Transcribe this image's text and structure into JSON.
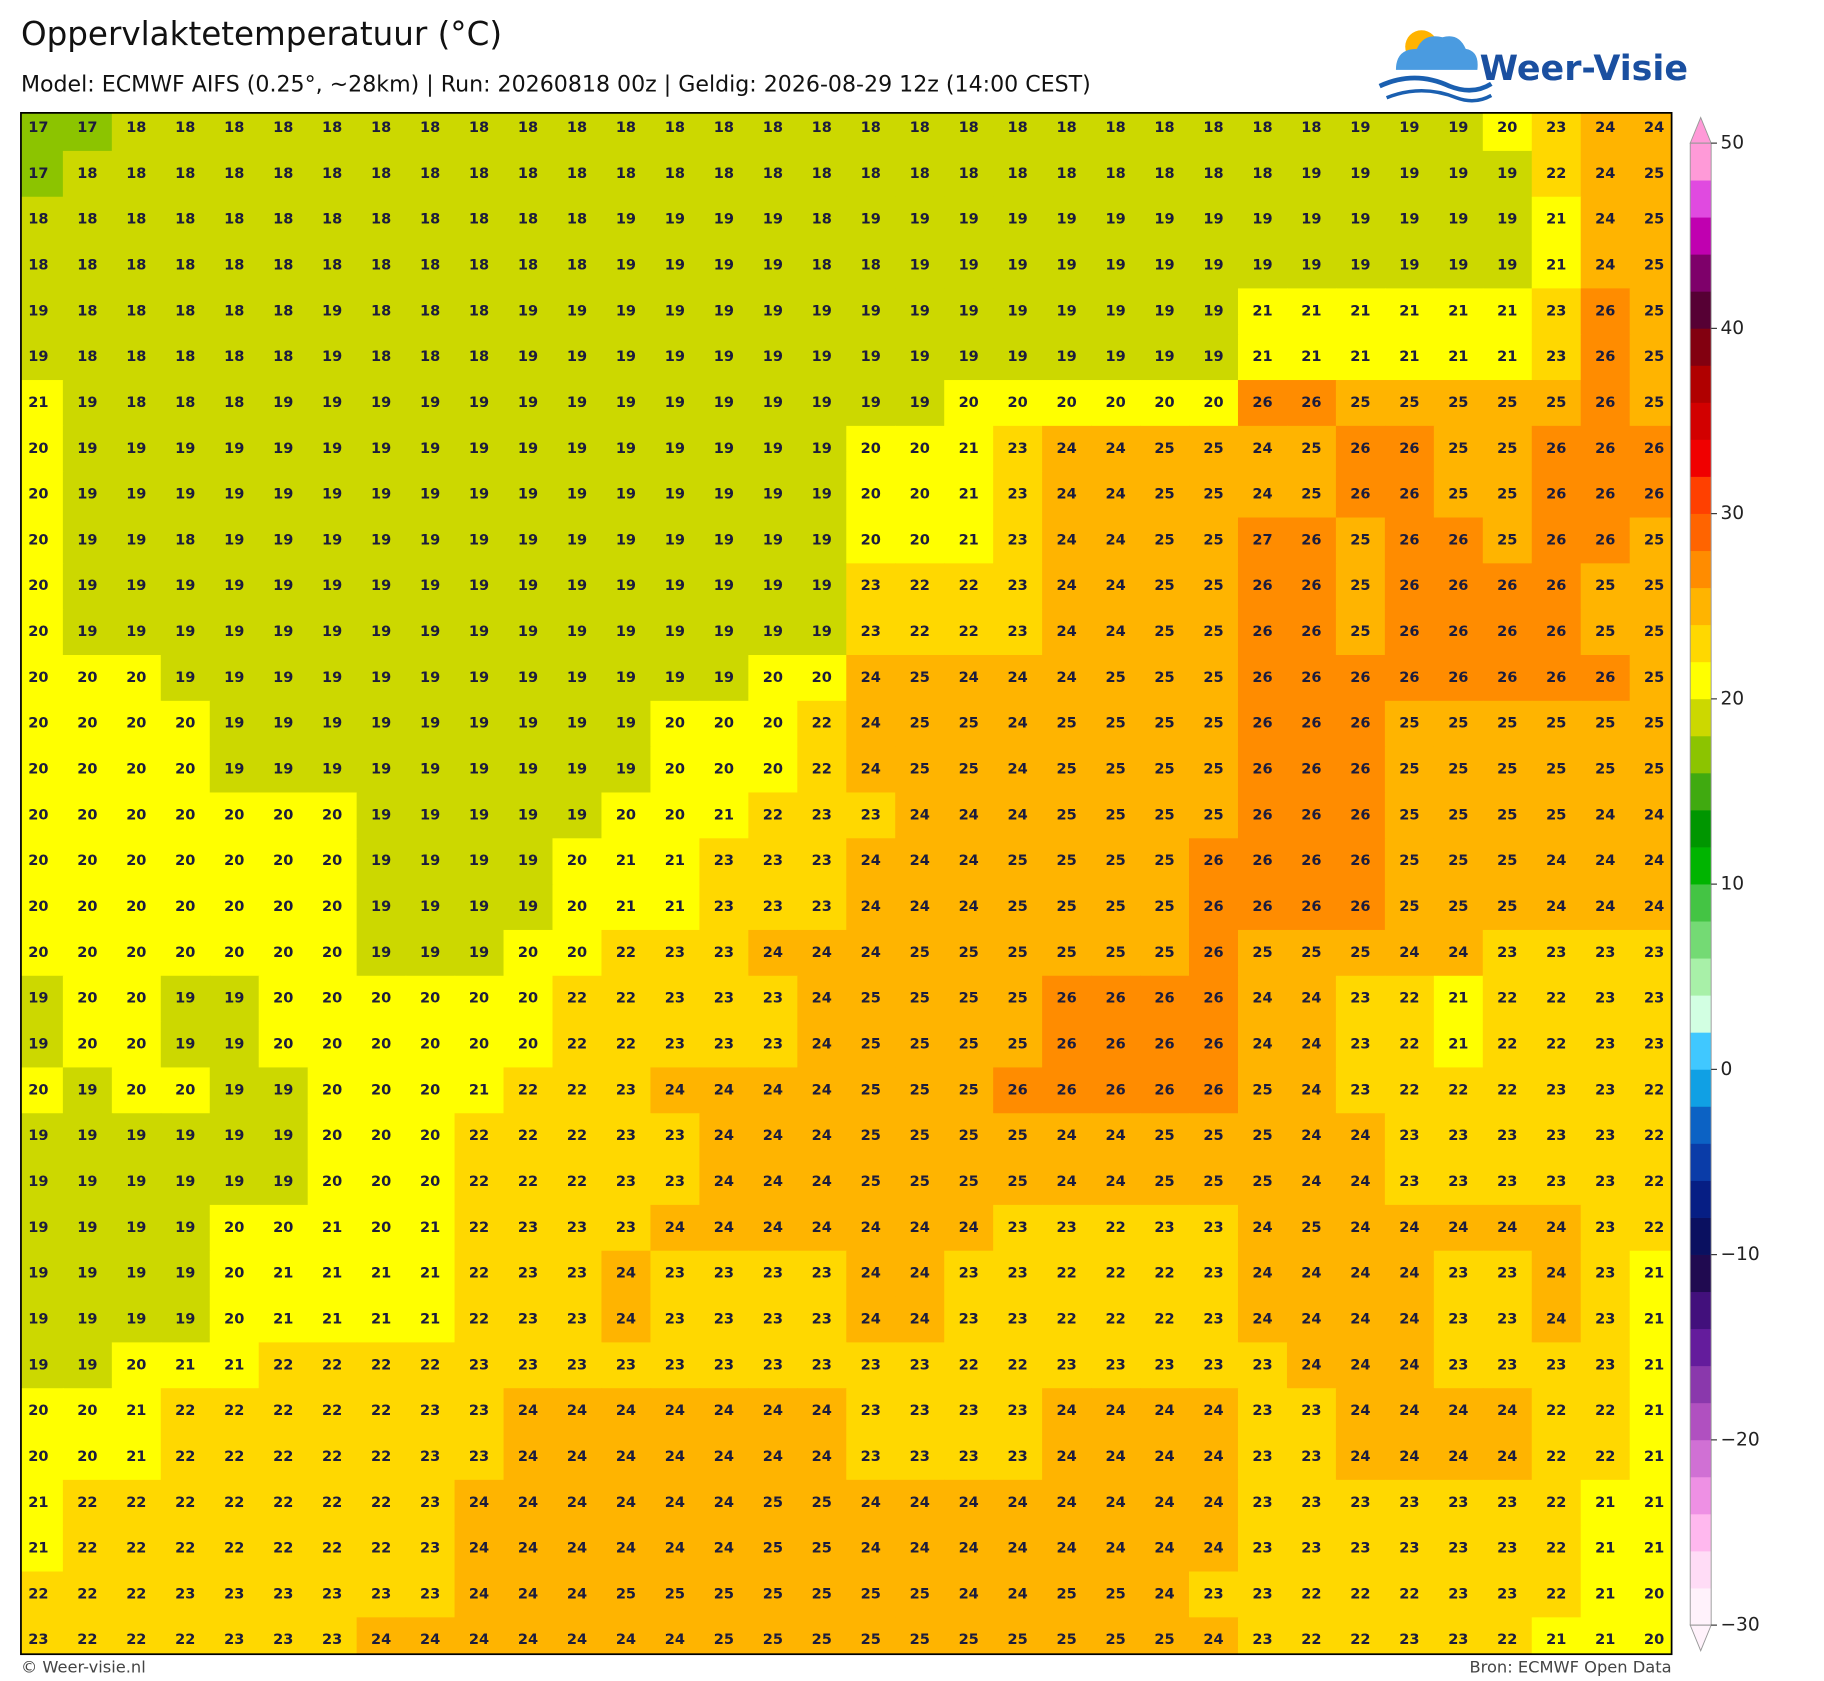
{
  "header": {
    "title": "Oppervlaktetemperatuur (°C)",
    "subtitle": "Model: ECMWF AIFS (0.25°, ~28km)  |  Run: 20260818 00z  |  Geldig: 2026-08-29 12z (14:00 CEST)"
  },
  "logo": {
    "text": "Weer-Visie"
  },
  "grid": {
    "rows": [
      [
        17,
        17,
        18,
        18,
        18,
        18,
        18,
        18,
        18,
        18,
        18,
        18,
        18,
        18,
        18,
        18,
        18,
        18,
        18,
        18,
        18,
        18,
        18,
        18,
        18,
        18,
        18,
        19,
        19,
        19,
        20,
        23,
        24,
        24
      ],
      [
        17,
        18,
        18,
        18,
        18,
        18,
        18,
        18,
        18,
        18,
        18,
        18,
        18,
        18,
        18,
        18,
        18,
        18,
        18,
        18,
        18,
        18,
        18,
        18,
        18,
        18,
        19,
        19,
        19,
        19,
        19,
        22,
        24,
        25
      ],
      [
        18,
        18,
        18,
        18,
        18,
        18,
        18,
        18,
        18,
        18,
        18,
        18,
        19,
        19,
        19,
        19,
        18,
        19,
        19,
        19,
        19,
        19,
        19,
        19,
        19,
        19,
        19,
        19,
        19,
        19,
        19,
        21,
        24,
        25
      ],
      [
        18,
        18,
        18,
        18,
        18,
        18,
        18,
        18,
        18,
        18,
        18,
        18,
        19,
        19,
        19,
        19,
        18,
        18,
        19,
        19,
        19,
        19,
        19,
        19,
        19,
        19,
        19,
        19,
        19,
        19,
        19,
        21,
        24,
        25
      ],
      [
        19,
        18,
        18,
        18,
        18,
        18,
        19,
        18,
        18,
        18,
        19,
        19,
        19,
        19,
        19,
        19,
        19,
        19,
        19,
        19,
        19,
        19,
        19,
        19,
        19,
        21,
        21,
        21,
        21,
        21,
        21,
        23,
        26,
        25
      ],
      [
        19,
        18,
        18,
        18,
        18,
        18,
        19,
        18,
        18,
        18,
        19,
        19,
        19,
        19,
        19,
        19,
        19,
        19,
        19,
        19,
        19,
        19,
        19,
        19,
        19,
        21,
        21,
        21,
        21,
        21,
        21,
        23,
        26,
        25
      ],
      [
        21,
        19,
        18,
        18,
        18,
        19,
        19,
        19,
        19,
        19,
        19,
        19,
        19,
        19,
        19,
        19,
        19,
        19,
        19,
        20,
        20,
        20,
        20,
        20,
        20,
        26,
        26,
        25,
        25,
        25,
        25,
        25,
        26,
        25
      ],
      [
        20,
        19,
        19,
        19,
        19,
        19,
        19,
        19,
        19,
        19,
        19,
        19,
        19,
        19,
        19,
        19,
        19,
        20,
        20,
        21,
        23,
        24,
        24,
        25,
        25,
        24,
        25,
        26,
        26,
        25,
        25,
        26,
        26,
        26
      ],
      [
        20,
        19,
        19,
        19,
        19,
        19,
        19,
        19,
        19,
        19,
        19,
        19,
        19,
        19,
        19,
        19,
        19,
        20,
        20,
        21,
        23,
        24,
        24,
        25,
        25,
        24,
        25,
        26,
        26,
        25,
        25,
        26,
        26,
        26
      ],
      [
        20,
        19,
        19,
        18,
        19,
        19,
        19,
        19,
        19,
        19,
        19,
        19,
        19,
        19,
        19,
        19,
        19,
        20,
        20,
        21,
        23,
        24,
        24,
        25,
        25,
        27,
        26,
        25,
        26,
        26,
        25,
        26,
        26,
        25
      ],
      [
        20,
        19,
        19,
        19,
        19,
        19,
        19,
        19,
        19,
        19,
        19,
        19,
        19,
        19,
        19,
        19,
        19,
        23,
        22,
        22,
        23,
        24,
        24,
        25,
        25,
        26,
        26,
        25,
        26,
        26,
        26,
        26,
        25,
        25
      ],
      [
        20,
        19,
        19,
        19,
        19,
        19,
        19,
        19,
        19,
        19,
        19,
        19,
        19,
        19,
        19,
        19,
        19,
        23,
        22,
        22,
        23,
        24,
        24,
        25,
        25,
        26,
        26,
        25,
        26,
        26,
        26,
        26,
        25,
        25
      ],
      [
        20,
        20,
        20,
        19,
        19,
        19,
        19,
        19,
        19,
        19,
        19,
        19,
        19,
        19,
        19,
        20,
        20,
        24,
        25,
        24,
        24,
        24,
        25,
        25,
        25,
        26,
        26,
        26,
        26,
        26,
        26,
        26,
        26,
        25
      ],
      [
        20,
        20,
        20,
        20,
        19,
        19,
        19,
        19,
        19,
        19,
        19,
        19,
        19,
        20,
        20,
        20,
        22,
        24,
        25,
        25,
        24,
        25,
        25,
        25,
        25,
        26,
        26,
        26,
        25,
        25,
        25,
        25,
        25,
        25
      ],
      [
        20,
        20,
        20,
        20,
        19,
        19,
        19,
        19,
        19,
        19,
        19,
        19,
        19,
        20,
        20,
        20,
        22,
        24,
        25,
        25,
        24,
        25,
        25,
        25,
        25,
        26,
        26,
        26,
        25,
        25,
        25,
        25,
        25,
        25
      ],
      [
        20,
        20,
        20,
        20,
        20,
        20,
        20,
        19,
        19,
        19,
        19,
        19,
        20,
        20,
        21,
        22,
        23,
        23,
        24,
        24,
        24,
        25,
        25,
        25,
        25,
        26,
        26,
        26,
        25,
        25,
        25,
        25,
        24,
        24
      ],
      [
        20,
        20,
        20,
        20,
        20,
        20,
        20,
        19,
        19,
        19,
        19,
        20,
        21,
        21,
        23,
        23,
        23,
        24,
        24,
        24,
        25,
        25,
        25,
        25,
        26,
        26,
        26,
        26,
        25,
        25,
        25,
        24,
        24,
        24
      ],
      [
        20,
        20,
        20,
        20,
        20,
        20,
        20,
        19,
        19,
        19,
        19,
        20,
        21,
        21,
        23,
        23,
        23,
        24,
        24,
        24,
        25,
        25,
        25,
        25,
        26,
        26,
        26,
        26,
        25,
        25,
        25,
        24,
        24,
        24
      ],
      [
        20,
        20,
        20,
        20,
        20,
        20,
        20,
        19,
        19,
        19,
        20,
        20,
        22,
        23,
        23,
        24,
        24,
        24,
        25,
        25,
        25,
        25,
        25,
        25,
        26,
        25,
        25,
        25,
        24,
        24,
        23,
        23,
        23,
        23
      ],
      [
        19,
        20,
        20,
        19,
        19,
        20,
        20,
        20,
        20,
        20,
        20,
        22,
        22,
        23,
        23,
        23,
        24,
        25,
        25,
        25,
        25,
        26,
        26,
        26,
        26,
        24,
        24,
        23,
        22,
        21,
        22,
        22,
        23,
        23
      ],
      [
        19,
        20,
        20,
        19,
        19,
        20,
        20,
        20,
        20,
        20,
        20,
        22,
        22,
        23,
        23,
        23,
        24,
        25,
        25,
        25,
        25,
        26,
        26,
        26,
        26,
        24,
        24,
        23,
        22,
        21,
        22,
        22,
        23,
        23
      ],
      [
        20,
        19,
        20,
        20,
        19,
        19,
        20,
        20,
        20,
        21,
        22,
        22,
        23,
        24,
        24,
        24,
        24,
        25,
        25,
        25,
        26,
        26,
        26,
        26,
        26,
        25,
        24,
        23,
        22,
        22,
        22,
        23,
        23,
        22
      ],
      [
        19,
        19,
        19,
        19,
        19,
        19,
        20,
        20,
        20,
        22,
        22,
        22,
        23,
        23,
        24,
        24,
        24,
        25,
        25,
        25,
        25,
        24,
        24,
        25,
        25,
        25,
        24,
        24,
        23,
        23,
        23,
        23,
        23,
        22
      ],
      [
        19,
        19,
        19,
        19,
        19,
        19,
        20,
        20,
        20,
        22,
        22,
        22,
        23,
        23,
        24,
        24,
        24,
        25,
        25,
        25,
        25,
        24,
        24,
        25,
        25,
        25,
        24,
        24,
        23,
        23,
        23,
        23,
        23,
        22
      ],
      [
        19,
        19,
        19,
        19,
        20,
        20,
        21,
        20,
        21,
        22,
        23,
        23,
        23,
        24,
        24,
        24,
        24,
        24,
        24,
        24,
        23,
        23,
        22,
        23,
        23,
        24,
        25,
        24,
        24,
        24,
        24,
        24,
        23,
        22
      ],
      [
        19,
        19,
        19,
        19,
        20,
        21,
        21,
        21,
        21,
        22,
        23,
        23,
        24,
        23,
        23,
        23,
        23,
        24,
        24,
        23,
        23,
        22,
        22,
        22,
        23,
        24,
        24,
        24,
        24,
        23,
        23,
        24,
        23,
        21
      ],
      [
        19,
        19,
        19,
        19,
        20,
        21,
        21,
        21,
        21,
        22,
        23,
        23,
        24,
        23,
        23,
        23,
        23,
        24,
        24,
        23,
        23,
        22,
        22,
        22,
        23,
        24,
        24,
        24,
        24,
        23,
        23,
        24,
        23,
        21
      ],
      [
        19,
        19,
        20,
        21,
        21,
        22,
        22,
        22,
        22,
        23,
        23,
        23,
        23,
        23,
        23,
        23,
        23,
        23,
        23,
        22,
        22,
        23,
        23,
        23,
        23,
        23,
        24,
        24,
        24,
        23,
        23,
        23,
        23,
        21
      ],
      [
        20,
        20,
        21,
        22,
        22,
        22,
        22,
        22,
        23,
        23,
        24,
        24,
        24,
        24,
        24,
        24,
        24,
        23,
        23,
        23,
        23,
        24,
        24,
        24,
        24,
        23,
        23,
        24,
        24,
        24,
        24,
        22,
        22,
        21
      ],
      [
        20,
        20,
        21,
        22,
        22,
        22,
        22,
        22,
        23,
        23,
        24,
        24,
        24,
        24,
        24,
        24,
        24,
        23,
        23,
        23,
        23,
        24,
        24,
        24,
        24,
        23,
        23,
        24,
        24,
        24,
        24,
        22,
        22,
        21
      ],
      [
        21,
        22,
        22,
        22,
        22,
        22,
        22,
        22,
        23,
        24,
        24,
        24,
        24,
        24,
        24,
        25,
        25,
        24,
        24,
        24,
        24,
        24,
        24,
        24,
        24,
        23,
        23,
        23,
        23,
        23,
        23,
        22,
        21,
        21
      ],
      [
        21,
        22,
        22,
        22,
        22,
        22,
        22,
        22,
        23,
        24,
        24,
        24,
        24,
        24,
        24,
        25,
        25,
        24,
        24,
        24,
        24,
        24,
        24,
        24,
        24,
        23,
        23,
        23,
        23,
        23,
        23,
        22,
        21,
        21
      ],
      [
        22,
        22,
        22,
        23,
        23,
        23,
        23,
        23,
        23,
        24,
        24,
        24,
        25,
        25,
        25,
        25,
        25,
        25,
        25,
        24,
        24,
        25,
        25,
        24,
        23,
        23,
        22,
        22,
        22,
        23,
        23,
        22,
        21,
        20
      ],
      [
        23,
        22,
        22,
        22,
        23,
        23,
        23,
        24,
        24,
        24,
        24,
        24,
        24,
        24,
        25,
        25,
        25,
        25,
        25,
        25,
        25,
        25,
        25,
        25,
        24,
        23,
        22,
        22,
        23,
        23,
        22,
        21,
        21,
        20
      ]
    ]
  },
  "colorbar": {
    "range": [
      -30,
      50
    ],
    "ticks": [
      {
        "value": -30,
        "label": "−30"
      },
      {
        "value": -20,
        "label": "−20"
      },
      {
        "value": -10,
        "label": "−10"
      },
      0,
      10,
      20,
      30,
      40,
      50
    ],
    "colors": [
      "#fff2fb",
      "#ffdcf6",
      "#ffb8ee",
      "#ee90e4",
      "#d070d4",
      "#b050c0",
      "#8a38ac",
      "#641c9c",
      "#42107c",
      "#200a50",
      "#0a1060",
      "#061e84",
      "#0a3ca8",
      "#0c62c4",
      "#10a0e4",
      "#40c8ff",
      "#d2ffe2",
      "#a8f0a8",
      "#74da74",
      "#44c444",
      "#00b400",
      "#009600",
      "#40aa10",
      "#8cc400",
      "#ccd800",
      "#ffff00",
      "#ffd800",
      "#ffb400",
      "#ff8c00",
      "#ff6400",
      "#ff4000",
      "#f00000",
      "#d20000",
      "#b00000",
      "#820010",
      "#560034",
      "#7e006a",
      "#c000b0",
      "#e04ae0",
      "#ff9ad8"
    ]
  },
  "footer": {
    "left": "© Weer-visie.nl",
    "right": "Bron: ECMWF Open Data"
  }
}
